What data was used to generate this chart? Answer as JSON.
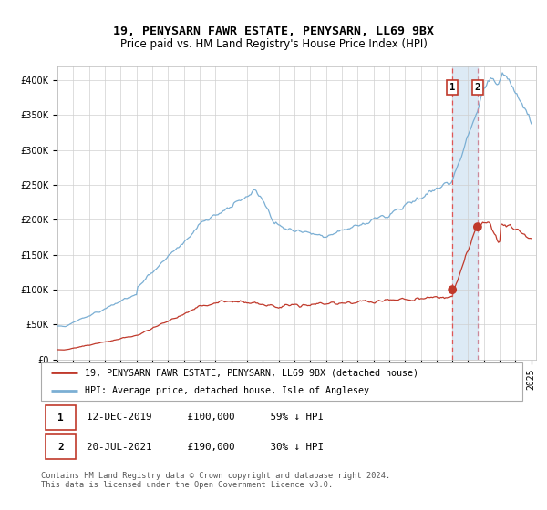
{
  "title": "19, PENYSARN FAWR ESTATE, PENYSARN, LL69 9BX",
  "subtitle": "Price paid vs. HM Land Registry's House Price Index (HPI)",
  "ylim": [
    0,
    420000
  ],
  "yticks": [
    0,
    50000,
    100000,
    150000,
    200000,
    250000,
    300000,
    350000,
    400000
  ],
  "ytick_labels": [
    "£0",
    "£50K",
    "£100K",
    "£150K",
    "£200K",
    "£250K",
    "£300K",
    "£350K",
    "£400K"
  ],
  "hpi_color": "#7bafd4",
  "price_color": "#c0392b",
  "vline1_color": "#e05555",
  "vline2_color": "#cc99aa",
  "highlight_color": "#ddeaf5",
  "legend_price": "19, PENYSARN FAWR ESTATE, PENYSARN, LL69 9BX (detached house)",
  "legend_hpi": "HPI: Average price, detached house, Isle of Anglesey",
  "transaction1_date": "12-DEC-2019",
  "transaction1_price": "£100,000",
  "transaction1_note": "59% ↓ HPI",
  "transaction2_date": "20-JUL-2021",
  "transaction2_price": "£190,000",
  "transaction2_note": "30% ↓ HPI",
  "footer": "Contains HM Land Registry data © Crown copyright and database right 2024.\nThis data is licensed under the Open Government Licence v3.0.",
  "title_fontsize": 9.5,
  "subtitle_fontsize": 8.5,
  "tick_fontsize": 7,
  "legend_fontsize": 7.5,
  "x_start_year": 1995,
  "x_end_year": 2025,
  "transaction1_year": 2020.0,
  "transaction2_year": 2021.6
}
